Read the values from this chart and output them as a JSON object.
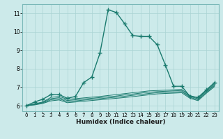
{
  "xlabel": "Humidex (Indice chaleur)",
  "background_color": "#cceaea",
  "line_color": "#1a7a6e",
  "xlim": [
    -0.5,
    23.5
  ],
  "ylim": [
    5.7,
    11.5
  ],
  "xticks": [
    0,
    1,
    2,
    3,
    4,
    5,
    6,
    7,
    8,
    9,
    10,
    11,
    12,
    13,
    14,
    15,
    16,
    17,
    18,
    19,
    20,
    21,
    22,
    23
  ],
  "yticks": [
    6,
    7,
    8,
    9,
    10,
    11
  ],
  "lines": [
    {
      "x": [
        0,
        1,
        2,
        3,
        4,
        5,
        6,
        7,
        8,
        9,
        10,
        11,
        12,
        13,
        14,
        15,
        16,
        17,
        18,
        19,
        20,
        21,
        22,
        23
      ],
      "y": [
        6.0,
        6.2,
        6.35,
        6.6,
        6.6,
        6.4,
        6.5,
        7.25,
        7.55,
        8.85,
        11.2,
        11.05,
        10.45,
        9.8,
        9.75,
        9.75,
        9.3,
        8.2,
        7.05,
        7.05,
        6.5,
        6.45,
        6.85,
        7.25
      ]
    },
    {
      "x": [
        0,
        1,
        2,
        3,
        4,
        5,
        6,
        7,
        8,
        9,
        10,
        11,
        12,
        13,
        14,
        15,
        16,
        17,
        18,
        19,
        20,
        21,
        22,
        23
      ],
      "y": [
        6.0,
        6.1,
        6.2,
        6.45,
        6.5,
        6.35,
        6.38,
        6.42,
        6.46,
        6.5,
        6.55,
        6.6,
        6.65,
        6.7,
        6.75,
        6.8,
        6.82,
        6.84,
        6.86,
        6.88,
        6.55,
        6.42,
        6.82,
        7.18
      ]
    },
    {
      "x": [
        0,
        1,
        2,
        3,
        4,
        5,
        6,
        7,
        8,
        9,
        10,
        11,
        12,
        13,
        14,
        15,
        16,
        17,
        18,
        19,
        20,
        21,
        22,
        23
      ],
      "y": [
        6.0,
        6.08,
        6.18,
        6.38,
        6.43,
        6.28,
        6.32,
        6.36,
        6.4,
        6.44,
        6.48,
        6.52,
        6.58,
        6.63,
        6.68,
        6.73,
        6.76,
        6.78,
        6.8,
        6.82,
        6.5,
        6.37,
        6.77,
        7.13
      ]
    },
    {
      "x": [
        0,
        1,
        2,
        3,
        4,
        5,
        6,
        7,
        8,
        9,
        10,
        11,
        12,
        13,
        14,
        15,
        16,
        17,
        18,
        19,
        20,
        21,
        22,
        23
      ],
      "y": [
        6.0,
        6.06,
        6.15,
        6.32,
        6.37,
        6.22,
        6.26,
        6.3,
        6.34,
        6.38,
        6.42,
        6.46,
        6.51,
        6.56,
        6.61,
        6.66,
        6.7,
        6.72,
        6.74,
        6.76,
        6.45,
        6.32,
        6.72,
        7.08
      ]
    },
    {
      "x": [
        0,
        1,
        2,
        3,
        4,
        5,
        6,
        7,
        8,
        9,
        10,
        11,
        12,
        13,
        14,
        15,
        16,
        17,
        18,
        19,
        20,
        21,
        22,
        23
      ],
      "y": [
        6.0,
        6.04,
        6.12,
        6.26,
        6.31,
        6.16,
        6.2,
        6.24,
        6.28,
        6.32,
        6.36,
        6.4,
        6.44,
        6.49,
        6.54,
        6.59,
        6.64,
        6.66,
        6.68,
        6.7,
        6.4,
        6.27,
        6.67,
        7.03
      ]
    }
  ]
}
